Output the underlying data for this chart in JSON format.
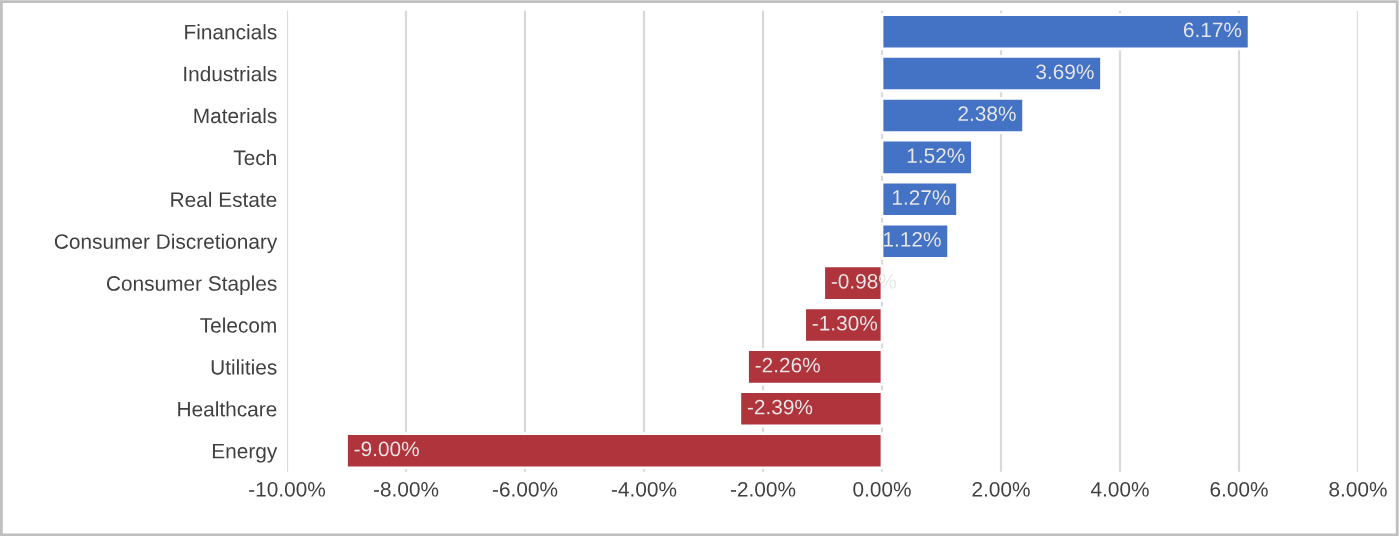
{
  "chart_data": {
    "type": "bar",
    "orientation": "horizontal",
    "categories": [
      "Financials",
      "Industrials",
      "Materials",
      "Tech",
      "Real Estate",
      "Consumer Discretionary",
      "Consumer Staples",
      "Telecom",
      "Utilities",
      "Healthcare",
      "Energy"
    ],
    "values": [
      6.17,
      3.69,
      2.38,
      1.52,
      1.27,
      1.12,
      -0.98,
      -1.3,
      -2.26,
      -2.39,
      -9.0
    ],
    "colors": [
      "#4472c4",
      "#4472c4",
      "#4472c4",
      "#4472c4",
      "#4472c4",
      "#4472c4",
      "#b0343c",
      "#b0343c",
      "#b0343c",
      "#b0343c",
      "#b0343c"
    ],
    "value_labels": [
      "6.17%",
      "3.69%",
      "2.38%",
      "1.52%",
      "1.27%",
      "1.12%",
      "-0.98%",
      "-1.30%",
      "-2.26%",
      "-2.39%",
      "-9.00%"
    ],
    "xlim": [
      -10,
      8
    ],
    "xticks": [
      {
        "value": -10,
        "label": "-10.00%"
      },
      {
        "value": -8,
        "label": "-8.00%"
      },
      {
        "value": -6,
        "label": "-6.00%"
      },
      {
        "value": -4,
        "label": "-4.00%"
      },
      {
        "value": -2,
        "label": "-2.00%"
      },
      {
        "value": 0,
        "label": "0.00%"
      },
      {
        "value": 2,
        "label": "2.00%"
      },
      {
        "value": 4,
        "label": "4.00%"
      },
      {
        "value": 6,
        "label": "6.00%"
      },
      {
        "value": 8,
        "label": "8.00%"
      }
    ],
    "grid": "x",
    "legend": false
  }
}
